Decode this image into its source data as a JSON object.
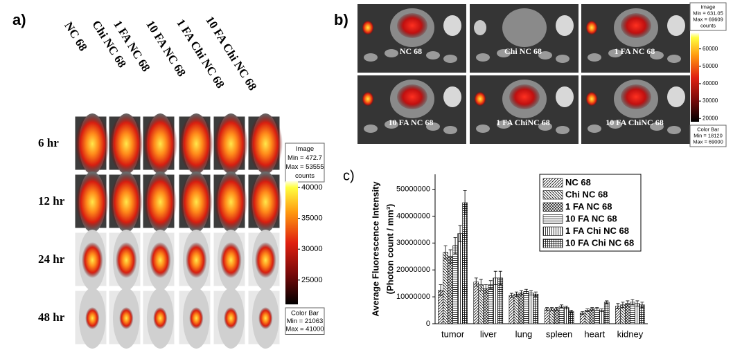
{
  "panel_a": {
    "label": "a)",
    "columns": [
      "NC 68",
      "Chi NC 68",
      "1 FA NC 68",
      "10 FA NC 68",
      "1 FA Chi NC 68",
      "10 FA Chi NC 68"
    ],
    "rows": [
      "6 hr",
      "12 hr",
      "24 hr",
      "48 hr"
    ],
    "image_box": [
      "Image",
      "Min = 472.7",
      "Max = 53555",
      "counts"
    ],
    "colorbar": {
      "lim": [
        21063,
        41000
      ],
      "ticks": [
        40000,
        35000,
        30000,
        25000
      ]
    },
    "colorbar_box": [
      "Color Bar",
      "Min = 21063",
      "Max = 41000"
    ]
  },
  "panel_b": {
    "label": "b)",
    "images": [
      "NC 68",
      "Chi NC 68",
      "1 FA NC 68",
      "10 FA NC 68",
      "1 FA ChiNC 68",
      "10 FA ChiNC 68"
    ],
    "image_box": [
      "Image",
      "Min = 631.05",
      "Max = 69609",
      "counts"
    ],
    "colorbar": {
      "lim": [
        18120,
        69000
      ],
      "ticks": [
        60000,
        50000,
        40000,
        30000,
        20000
      ]
    },
    "colorbar_box": [
      "Color Bar",
      "Min = 18120",
      "Max = 69000"
    ]
  },
  "chart_data": {
    "type": "bar",
    "panel_label": "c)",
    "ylabel": [
      "Average Fluorescence Intensity",
      "(Photon count / mm³)"
    ],
    "categories": [
      "tumor",
      "liver",
      "lung",
      "spleen",
      "heart",
      "kidney"
    ],
    "ylim": [
      0,
      54000000
    ],
    "yticks": [
      0,
      10000000,
      20000000,
      30000000,
      40000000,
      50000000
    ],
    "series": [
      {
        "name": "NC 68",
        "color": "#000000",
        "hatch": "diagonal",
        "values": [
          12500000,
          15500000,
          10500000,
          5500000,
          4000000,
          6500000
        ],
        "errors": [
          2000000,
          1500000,
          800000,
          500000,
          500000,
          1000000
        ]
      },
      {
        "name": "Chi NC 68",
        "color": "#000000",
        "hatch": "back-diagonal",
        "values": [
          26500000,
          14500000,
          11000000,
          5500000,
          5000000,
          7000000
        ],
        "errors": [
          2500000,
          2000000,
          800000,
          500000,
          500000,
          1000000
        ]
      },
      {
        "name": "1 FA NC 68",
        "color": "#000000",
        "hatch": "cross",
        "values": [
          25000000,
          13000000,
          11500000,
          5500000,
          5500000,
          7500000
        ],
        "errors": [
          2500000,
          1500000,
          800000,
          500000,
          500000,
          1000000
        ]
      },
      {
        "name": "10 FA NC 68",
        "color": "#000000",
        "hatch": "horizontal",
        "values": [
          29000000,
          14500000,
          12000000,
          6500000,
          5500000,
          8000000
        ],
        "errors": [
          3000000,
          1500000,
          800000,
          500000,
          500000,
          1000000
        ]
      },
      {
        "name": "1 FA Chi NC 68",
        "color": "#000000",
        "hatch": "vertical",
        "values": [
          33500000,
          17000000,
          11500000,
          6000000,
          5000000,
          7500000
        ],
        "errors": [
          3000000,
          2500000,
          800000,
          500000,
          500000,
          1000000
        ]
      },
      {
        "name": "10 FA Chi NC 68",
        "color": "#000000",
        "hatch": "grid",
        "values": [
          45000000,
          17000000,
          11000000,
          4500000,
          8000000,
          7000000
        ],
        "errors": [
          4500000,
          2500000,
          800000,
          500000,
          500000,
          1000000
        ]
      }
    ]
  }
}
